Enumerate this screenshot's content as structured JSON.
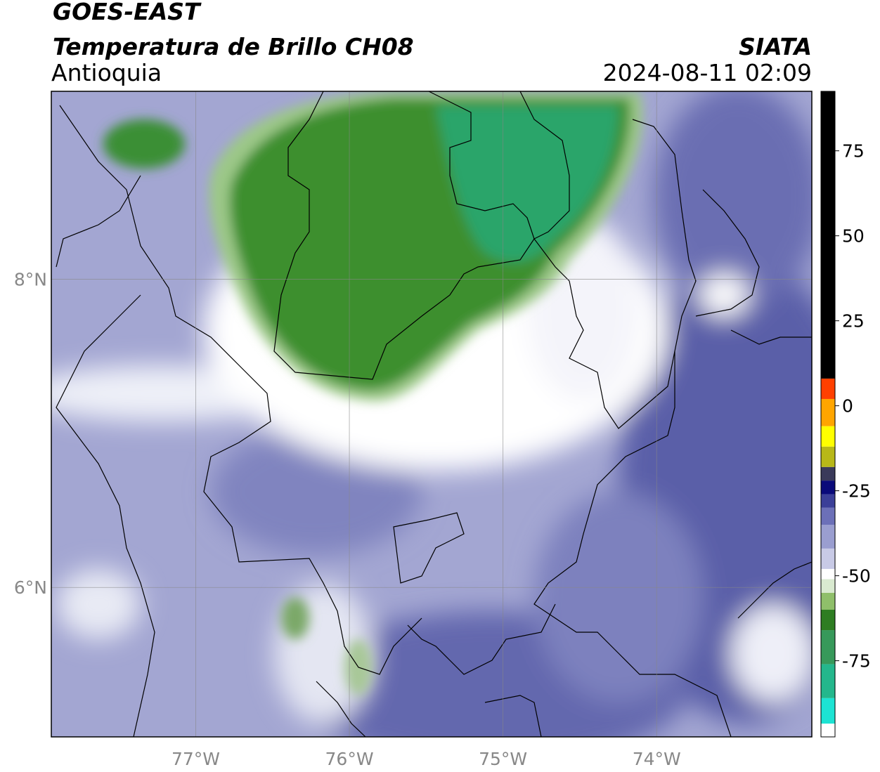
{
  "header": {
    "line1": "GOES-EAST",
    "title": "Temperatura de Brillo CH08",
    "region": "Antioquia",
    "source": "SIATA",
    "datetime": "2024-08-11 02:09"
  },
  "map": {
    "xlim": [
      -77.94,
      -72.99
    ],
    "ylim": [
      5.03,
      9.22
    ],
    "xticks": [
      {
        "value": -77,
        "label": "77°W"
      },
      {
        "value": -76,
        "label": "76°W"
      },
      {
        "value": -75,
        "label": "75°W"
      },
      {
        "value": -74,
        "label": "74°W"
      }
    ],
    "yticks": [
      {
        "value": 8,
        "label": "8°N"
      },
      {
        "value": 6,
        "label": "6°N"
      }
    ],
    "grid": true
  },
  "colorbar": {
    "lim": [
      -97.4,
      92.5
    ],
    "ticks": [
      -75,
      -50,
      -25,
      0,
      25,
      50,
      75
    ],
    "stops": [
      {
        "value": -97.4,
        "color": "#ffffff"
      },
      {
        "value": -93.5,
        "color": "#1de3d3"
      },
      {
        "value": -86,
        "color": "#24b78c"
      },
      {
        "value": -76,
        "color": "#37995a"
      },
      {
        "value": -66,
        "color": "#2e7d22"
      },
      {
        "value": -60,
        "color": "#8fbf6a"
      },
      {
        "value": -55,
        "color": "#d9ead0"
      },
      {
        "value": -51,
        "color": "#ffffff"
      },
      {
        "value": -48,
        "color": "#c8cae6"
      },
      {
        "value": -42,
        "color": "#9a9ed0"
      },
      {
        "value": -35,
        "color": "#6c70b8"
      },
      {
        "value": -30,
        "color": "#3b3f98"
      },
      {
        "value": -26,
        "color": "#0a0a7a"
      },
      {
        "value": -22,
        "color": "#3a3a5a"
      },
      {
        "value": -18,
        "color": "#b8b818"
      },
      {
        "value": -12,
        "color": "#ffff00"
      },
      {
        "value": -6,
        "color": "#ffa500"
      },
      {
        "value": 2,
        "color": "#ff4000"
      },
      {
        "value": 8,
        "color": "#000000"
      }
    ]
  }
}
